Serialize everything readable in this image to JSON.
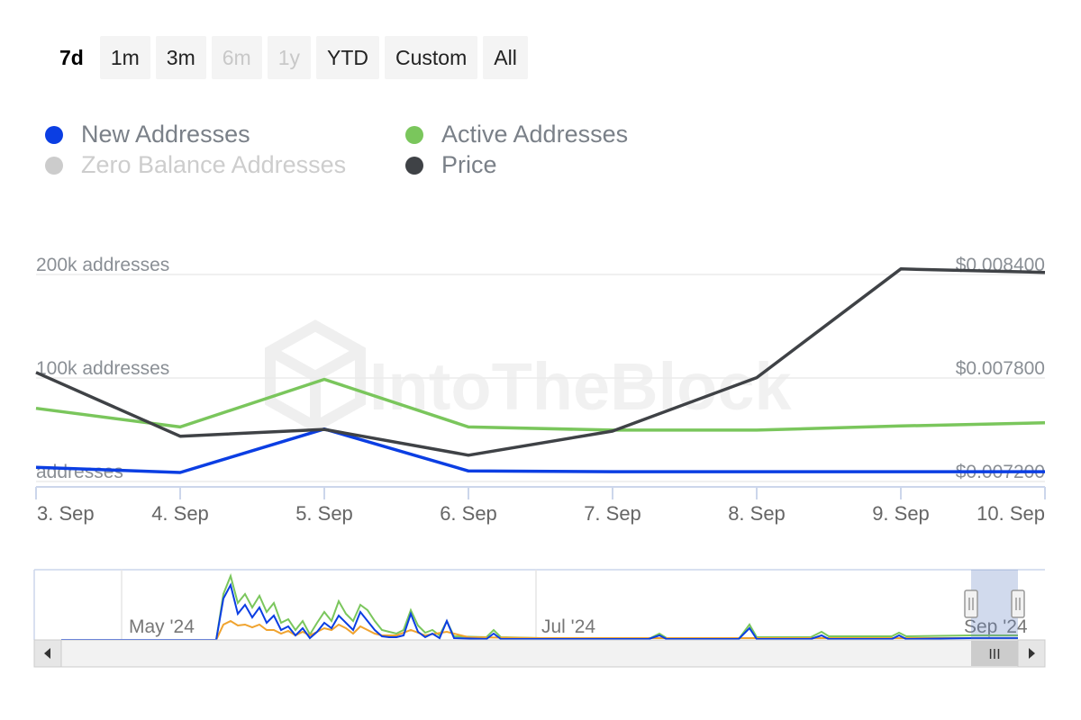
{
  "range_selector": {
    "buttons": [
      {
        "label": "7d",
        "state": "active"
      },
      {
        "label": "1m",
        "state": "normal"
      },
      {
        "label": "3m",
        "state": "normal"
      },
      {
        "label": "6m",
        "state": "disabled"
      },
      {
        "label": "1y",
        "state": "disabled"
      },
      {
        "label": "YTD",
        "state": "normal"
      },
      {
        "label": "Custom",
        "state": "normal"
      },
      {
        "label": "All",
        "state": "normal"
      }
    ]
  },
  "legend": {
    "new_addresses": {
      "label": "New Addresses",
      "color": "#0b3ee3"
    },
    "active_addresses": {
      "label": "Active Addresses",
      "color": "#7ac65c"
    },
    "zero_balance": {
      "label": "Zero Balance Addresses",
      "color": "#cccccc",
      "hidden": true
    },
    "price": {
      "label": "Price",
      "color": "#3f4246"
    }
  },
  "watermark": "IntoTheBlock",
  "chart_data": {
    "type": "line",
    "x": [
      "3. Sep",
      "4. Sep",
      "5. Sep",
      "6. Sep",
      "7. Sep",
      "8. Sep",
      "9. Sep",
      "10. Sep"
    ],
    "y_left_labels": [
      "200k addresses",
      "100k addresses",
      "addresses"
    ],
    "y_left_range": [
      0,
      200000
    ],
    "y_right_labels": [
      "$0.008400",
      "$0.007800",
      "$0.007200"
    ],
    "y_right_range": [
      0.0072,
      0.0084
    ],
    "series": [
      {
        "name": "New Addresses",
        "axis": "left",
        "color": "#0b3ee3",
        "values": [
          5000,
          0,
          42000,
          1500,
          800,
          800,
          800,
          800
        ]
      },
      {
        "name": "Active Addresses",
        "axis": "left",
        "color": "#7ac65c",
        "values": [
          62000,
          44000,
          90000,
          44000,
          41000,
          41000,
          45000,
          48000
        ]
      },
      {
        "name": "Price",
        "axis": "right",
        "color": "#3f4246",
        "values": [
          0.00778,
          0.00741,
          0.00745,
          0.0073,
          0.00744,
          0.00775,
          0.00838,
          0.00836
        ]
      }
    ],
    "grid": true
  },
  "navigator": {
    "labels": [
      "May '24",
      "Jul '24",
      "Sep '24"
    ],
    "scroll_grip": "III"
  }
}
